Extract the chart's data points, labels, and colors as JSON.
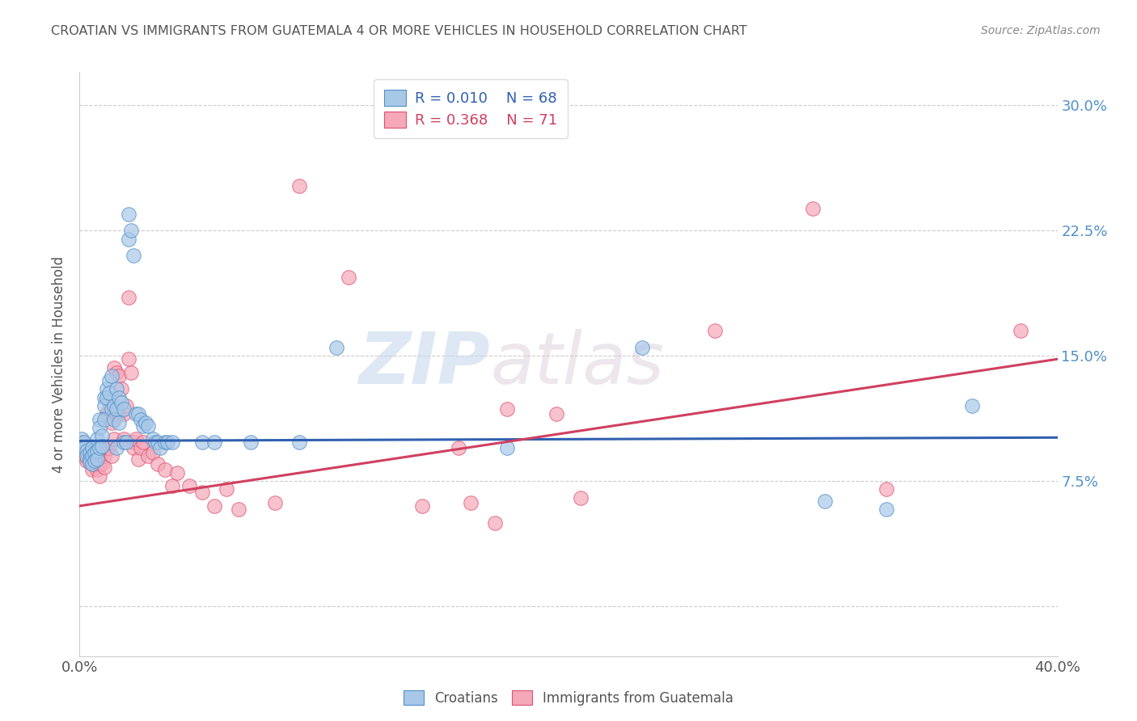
{
  "title": "CROATIAN VS IMMIGRANTS FROM GUATEMALA 4 OR MORE VEHICLES IN HOUSEHOLD CORRELATION CHART",
  "source": "Source: ZipAtlas.com",
  "ylabel": "4 or more Vehicles in Household",
  "yticks": [
    0.0,
    0.075,
    0.15,
    0.225,
    0.3
  ],
  "ytick_labels": [
    "",
    "7.5%",
    "15.0%",
    "22.5%",
    "30.0%"
  ],
  "xmin": 0.0,
  "xmax": 0.4,
  "ymin": -0.03,
  "ymax": 0.32,
  "blue_R": "0.010",
  "blue_N": "68",
  "pink_R": "0.368",
  "pink_N": "71",
  "legend_label_blue": "Croatians",
  "legend_label_pink": "Immigrants from Guatemala",
  "watermark_zip": "ZIP",
  "watermark_atlas": "atlas",
  "blue_color": "#a8c8e8",
  "pink_color": "#f4a8b8",
  "blue_edge_color": "#5090c8",
  "pink_edge_color": "#e05070",
  "blue_line_color": "#3060b0",
  "pink_line_color": "#d04060",
  "title_color": "#666666",
  "right_tick_color": "#5090c8",
  "blue_trendline": [
    [
      0.0,
      0.099
    ],
    [
      0.4,
      0.101
    ]
  ],
  "pink_trendline": [
    [
      0.0,
      0.06
    ],
    [
      0.4,
      0.148
    ]
  ],
  "blue_scatter": [
    [
      0.001,
      0.1
    ],
    [
      0.002,
      0.098
    ],
    [
      0.002,
      0.095
    ],
    [
      0.003,
      0.093
    ],
    [
      0.003,
      0.09
    ],
    [
      0.004,
      0.092
    ],
    [
      0.004,
      0.088
    ],
    [
      0.004,
      0.086
    ],
    [
      0.005,
      0.095
    ],
    [
      0.005,
      0.09
    ],
    [
      0.005,
      0.085
    ],
    [
      0.006,
      0.092
    ],
    [
      0.006,
      0.087
    ],
    [
      0.007,
      0.1
    ],
    [
      0.007,
      0.093
    ],
    [
      0.007,
      0.088
    ],
    [
      0.008,
      0.112
    ],
    [
      0.008,
      0.107
    ],
    [
      0.008,
      0.095
    ],
    [
      0.009,
      0.102
    ],
    [
      0.009,
      0.096
    ],
    [
      0.01,
      0.125
    ],
    [
      0.01,
      0.12
    ],
    [
      0.01,
      0.112
    ],
    [
      0.011,
      0.13
    ],
    [
      0.011,
      0.125
    ],
    [
      0.012,
      0.135
    ],
    [
      0.012,
      0.128
    ],
    [
      0.013,
      0.138
    ],
    [
      0.013,
      0.118
    ],
    [
      0.014,
      0.12
    ],
    [
      0.014,
      0.112
    ],
    [
      0.015,
      0.13
    ],
    [
      0.015,
      0.118
    ],
    [
      0.015,
      0.095
    ],
    [
      0.016,
      0.125
    ],
    [
      0.016,
      0.11
    ],
    [
      0.017,
      0.122
    ],
    [
      0.018,
      0.118
    ],
    [
      0.018,
      0.098
    ],
    [
      0.019,
      0.098
    ],
    [
      0.02,
      0.235
    ],
    [
      0.02,
      0.22
    ],
    [
      0.021,
      0.225
    ],
    [
      0.022,
      0.21
    ],
    [
      0.023,
      0.115
    ],
    [
      0.024,
      0.115
    ],
    [
      0.025,
      0.112
    ],
    [
      0.026,
      0.108
    ],
    [
      0.027,
      0.11
    ],
    [
      0.028,
      0.108
    ],
    [
      0.03,
      0.1
    ],
    [
      0.031,
      0.098
    ],
    [
      0.032,
      0.098
    ],
    [
      0.033,
      0.095
    ],
    [
      0.035,
      0.098
    ],
    [
      0.036,
      0.098
    ],
    [
      0.038,
      0.098
    ],
    [
      0.05,
      0.098
    ],
    [
      0.055,
      0.098
    ],
    [
      0.07,
      0.098
    ],
    [
      0.09,
      0.098
    ],
    [
      0.105,
      0.155
    ],
    [
      0.175,
      0.095
    ],
    [
      0.23,
      0.155
    ],
    [
      0.305,
      0.063
    ],
    [
      0.33,
      0.058
    ],
    [
      0.365,
      0.12
    ]
  ],
  "pink_scatter": [
    [
      0.001,
      0.098
    ],
    [
      0.002,
      0.093
    ],
    [
      0.002,
      0.09
    ],
    [
      0.003,
      0.09
    ],
    [
      0.003,
      0.087
    ],
    [
      0.004,
      0.092
    ],
    [
      0.004,
      0.087
    ],
    [
      0.005,
      0.088
    ],
    [
      0.005,
      0.085
    ],
    [
      0.005,
      0.082
    ],
    [
      0.006,
      0.09
    ],
    [
      0.006,
      0.085
    ],
    [
      0.007,
      0.088
    ],
    [
      0.007,
      0.082
    ],
    [
      0.008,
      0.095
    ],
    [
      0.008,
      0.085
    ],
    [
      0.008,
      0.078
    ],
    [
      0.009,
      0.092
    ],
    [
      0.009,
      0.085
    ],
    [
      0.01,
      0.09
    ],
    [
      0.01,
      0.083
    ],
    [
      0.011,
      0.115
    ],
    [
      0.011,
      0.095
    ],
    [
      0.012,
      0.118
    ],
    [
      0.012,
      0.095
    ],
    [
      0.013,
      0.11
    ],
    [
      0.013,
      0.09
    ],
    [
      0.014,
      0.143
    ],
    [
      0.014,
      0.1
    ],
    [
      0.015,
      0.14
    ],
    [
      0.015,
      0.115
    ],
    [
      0.016,
      0.138
    ],
    [
      0.016,
      0.115
    ],
    [
      0.017,
      0.13
    ],
    [
      0.018,
      0.115
    ],
    [
      0.018,
      0.1
    ],
    [
      0.019,
      0.12
    ],
    [
      0.02,
      0.185
    ],
    [
      0.02,
      0.148
    ],
    [
      0.021,
      0.14
    ],
    [
      0.022,
      0.098
    ],
    [
      0.022,
      0.095
    ],
    [
      0.023,
      0.1
    ],
    [
      0.024,
      0.088
    ],
    [
      0.025,
      0.095
    ],
    [
      0.026,
      0.098
    ],
    [
      0.028,
      0.09
    ],
    [
      0.03,
      0.092
    ],
    [
      0.032,
      0.085
    ],
    [
      0.035,
      0.082
    ],
    [
      0.038,
      0.072
    ],
    [
      0.04,
      0.08
    ],
    [
      0.045,
      0.072
    ],
    [
      0.05,
      0.068
    ],
    [
      0.055,
      0.06
    ],
    [
      0.06,
      0.07
    ],
    [
      0.065,
      0.058
    ],
    [
      0.08,
      0.062
    ],
    [
      0.09,
      0.252
    ],
    [
      0.11,
      0.197
    ],
    [
      0.14,
      0.06
    ],
    [
      0.155,
      0.095
    ],
    [
      0.16,
      0.062
    ],
    [
      0.17,
      0.05
    ],
    [
      0.175,
      0.118
    ],
    [
      0.195,
      0.115
    ],
    [
      0.205,
      0.065
    ],
    [
      0.26,
      0.165
    ],
    [
      0.3,
      0.238
    ],
    [
      0.33,
      0.07
    ],
    [
      0.385,
      0.165
    ]
  ]
}
